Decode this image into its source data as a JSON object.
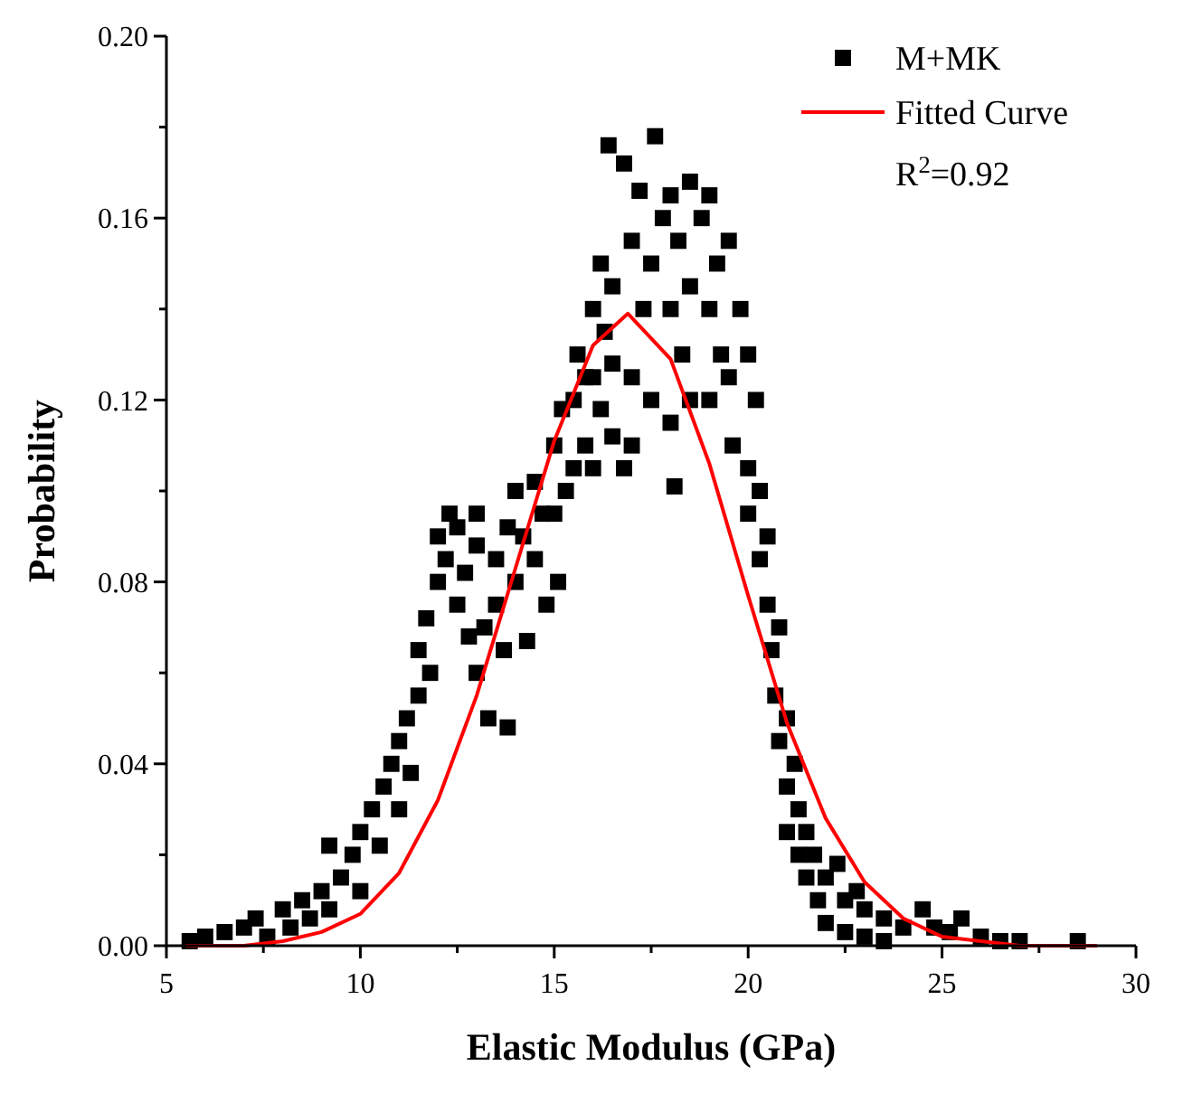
{
  "chart_data": {
    "type": "scatter",
    "xlabel": "Elastic Modulus (GPa)",
    "ylabel": "Probability",
    "xlim": [
      5,
      30
    ],
    "ylim": [
      0,
      0.2
    ],
    "xticks": [
      5,
      {
        "value": 7.5,
        "label": null
      },
      10,
      {
        "value": 12.5,
        "label": null
      },
      15,
      {
        "value": 17.5,
        "label": null
      },
      20,
      {
        "value": 22.5,
        "label": null
      },
      25,
      {
        "value": 27.5,
        "label": null
      },
      30
    ],
    "yticks": [
      {
        "value": 0,
        "label": "0.00"
      },
      {
        "value": 0.02,
        "label": null
      },
      {
        "value": 0.04,
        "label": "0.04"
      },
      {
        "value": 0.06,
        "label": null
      },
      {
        "value": 0.08,
        "label": "0.08"
      },
      {
        "value": 0.1,
        "label": null
      },
      {
        "value": 0.12,
        "label": "0.12"
      },
      {
        "value": 0.14,
        "label": null
      },
      {
        "value": 0.16,
        "label": "0.16"
      },
      {
        "value": 0.18,
        "label": null
      },
      {
        "value": 0.2,
        "label": "0.20"
      }
    ],
    "grid": false,
    "legend": "top right",
    "annotations": [
      "R$^{2}$=0.92"
    ],
    "series": [
      {
        "name": "M+MK",
        "marker": "square",
        "color": "#000000",
        "x": [
          5.6,
          6,
          6.5,
          7,
          7.3,
          7.6,
          8,
          8.2,
          8.5,
          8.7,
          9,
          9.2,
          9.2,
          9.5,
          9.8,
          10,
          10,
          10.3,
          10.5,
          10.6,
          10.8,
          11,
          11,
          11.2,
          11.3,
          11.5,
          11.5,
          11.7,
          11.8,
          12,
          12,
          12.2,
          12.3,
          12.5,
          12.5,
          12.7,
          12.8,
          13,
          13,
          13,
          13.2,
          13.3,
          13.5,
          13.5,
          13.7,
          13.8,
          13.8,
          14,
          14,
          14.2,
          14.3,
          14.5,
          14.5,
          14.7,
          14.8,
          15,
          15,
          15.1,
          15.2,
          15.3,
          15.5,
          15.5,
          15.6,
          15.8,
          15.8,
          16,
          16,
          16,
          16.2,
          16.2,
          16.3,
          16.5,
          16.5,
          16.5,
          16.4,
          17.6,
          16.8,
          17.2,
          17,
          17.3,
          17,
          17,
          16.8,
          17.5,
          17.5,
          17.8,
          18,
          18,
          18,
          18.2,
          18.3,
          18.5,
          18.5,
          18.5,
          18.1,
          18.8,
          19,
          19,
          19,
          19.2,
          19.3,
          19.5,
          19.5,
          19.6,
          19.8,
          20,
          20,
          20,
          20.2,
          20.3,
          20.3,
          20.5,
          20.5,
          20.6,
          20.7,
          20.8,
          20.8,
          21,
          21,
          21,
          21.2,
          21.3,
          21.3,
          21.5,
          21.5,
          21.7,
          21.8,
          22,
          22,
          22.3,
          22.5,
          22.5,
          22.8,
          23,
          23,
          23.5,
          23.5,
          24,
          24.5,
          24.8,
          25.2,
          25.5,
          26,
          26.5,
          27,
          28.5
        ],
        "values": [
          0.001,
          0.002,
          0.003,
          0.004,
          0.006,
          0.002,
          0.008,
          0.004,
          0.01,
          0.006,
          0.012,
          0.008,
          0.022,
          0.015,
          0.02,
          0.025,
          0.012,
          0.03,
          0.022,
          0.035,
          0.04,
          0.03,
          0.045,
          0.05,
          0.038,
          0.055,
          0.065,
          0.072,
          0.06,
          0.08,
          0.09,
          0.085,
          0.095,
          0.092,
          0.075,
          0.082,
          0.068,
          0.095,
          0.088,
          0.06,
          0.07,
          0.05,
          0.085,
          0.075,
          0.065,
          0.092,
          0.048,
          0.1,
          0.08,
          0.09,
          0.067,
          0.102,
          0.085,
          0.095,
          0.075,
          0.11,
          0.095,
          0.08,
          0.118,
          0.1,
          0.12,
          0.105,
          0.13,
          0.125,
          0.11,
          0.14,
          0.125,
          0.105,
          0.15,
          0.118,
          0.135,
          0.145,
          0.128,
          0.112,
          0.176,
          0.178,
          0.172,
          0.166,
          0.155,
          0.14,
          0.125,
          0.11,
          0.105,
          0.12,
          0.15,
          0.16,
          0.165,
          0.14,
          0.115,
          0.155,
          0.13,
          0.168,
          0.145,
          0.12,
          0.101,
          0.16,
          0.165,
          0.14,
          0.12,
          0.15,
          0.13,
          0.155,
          0.125,
          0.11,
          0.14,
          0.13,
          0.105,
          0.095,
          0.12,
          0.1,
          0.085,
          0.09,
          0.075,
          0.065,
          0.055,
          0.07,
          0.045,
          0.05,
          0.035,
          0.025,
          0.04,
          0.02,
          0.03,
          0.015,
          0.025,
          0.02,
          0.01,
          0.015,
          0.005,
          0.018,
          0.01,
          0.003,
          0.012,
          0.008,
          0.002,
          0.006,
          0.001,
          0.004,
          0.008,
          0.004,
          0.003,
          0.006,
          0.002,
          0.001,
          0.001,
          0.001
        ]
      },
      {
        "name": "Fitted Curve",
        "type": "line",
        "color": "#ff0000",
        "x": [
          5.5,
          6,
          7,
          8,
          9,
          10,
          11,
          12,
          13,
          14,
          15,
          16,
          16.9,
          18,
          19,
          20,
          21,
          22,
          23,
          24,
          25,
          26,
          27,
          28,
          29
        ],
        "values": [
          0,
          0,
          0,
          0.001,
          0.003,
          0.007,
          0.016,
          0.032,
          0.055,
          0.083,
          0.111,
          0.132,
          0.139,
          0.129,
          0.106,
          0.077,
          0.049,
          0.028,
          0.014,
          0.006,
          0.002,
          0.001,
          0,
          0,
          0
        ]
      }
    ]
  }
}
